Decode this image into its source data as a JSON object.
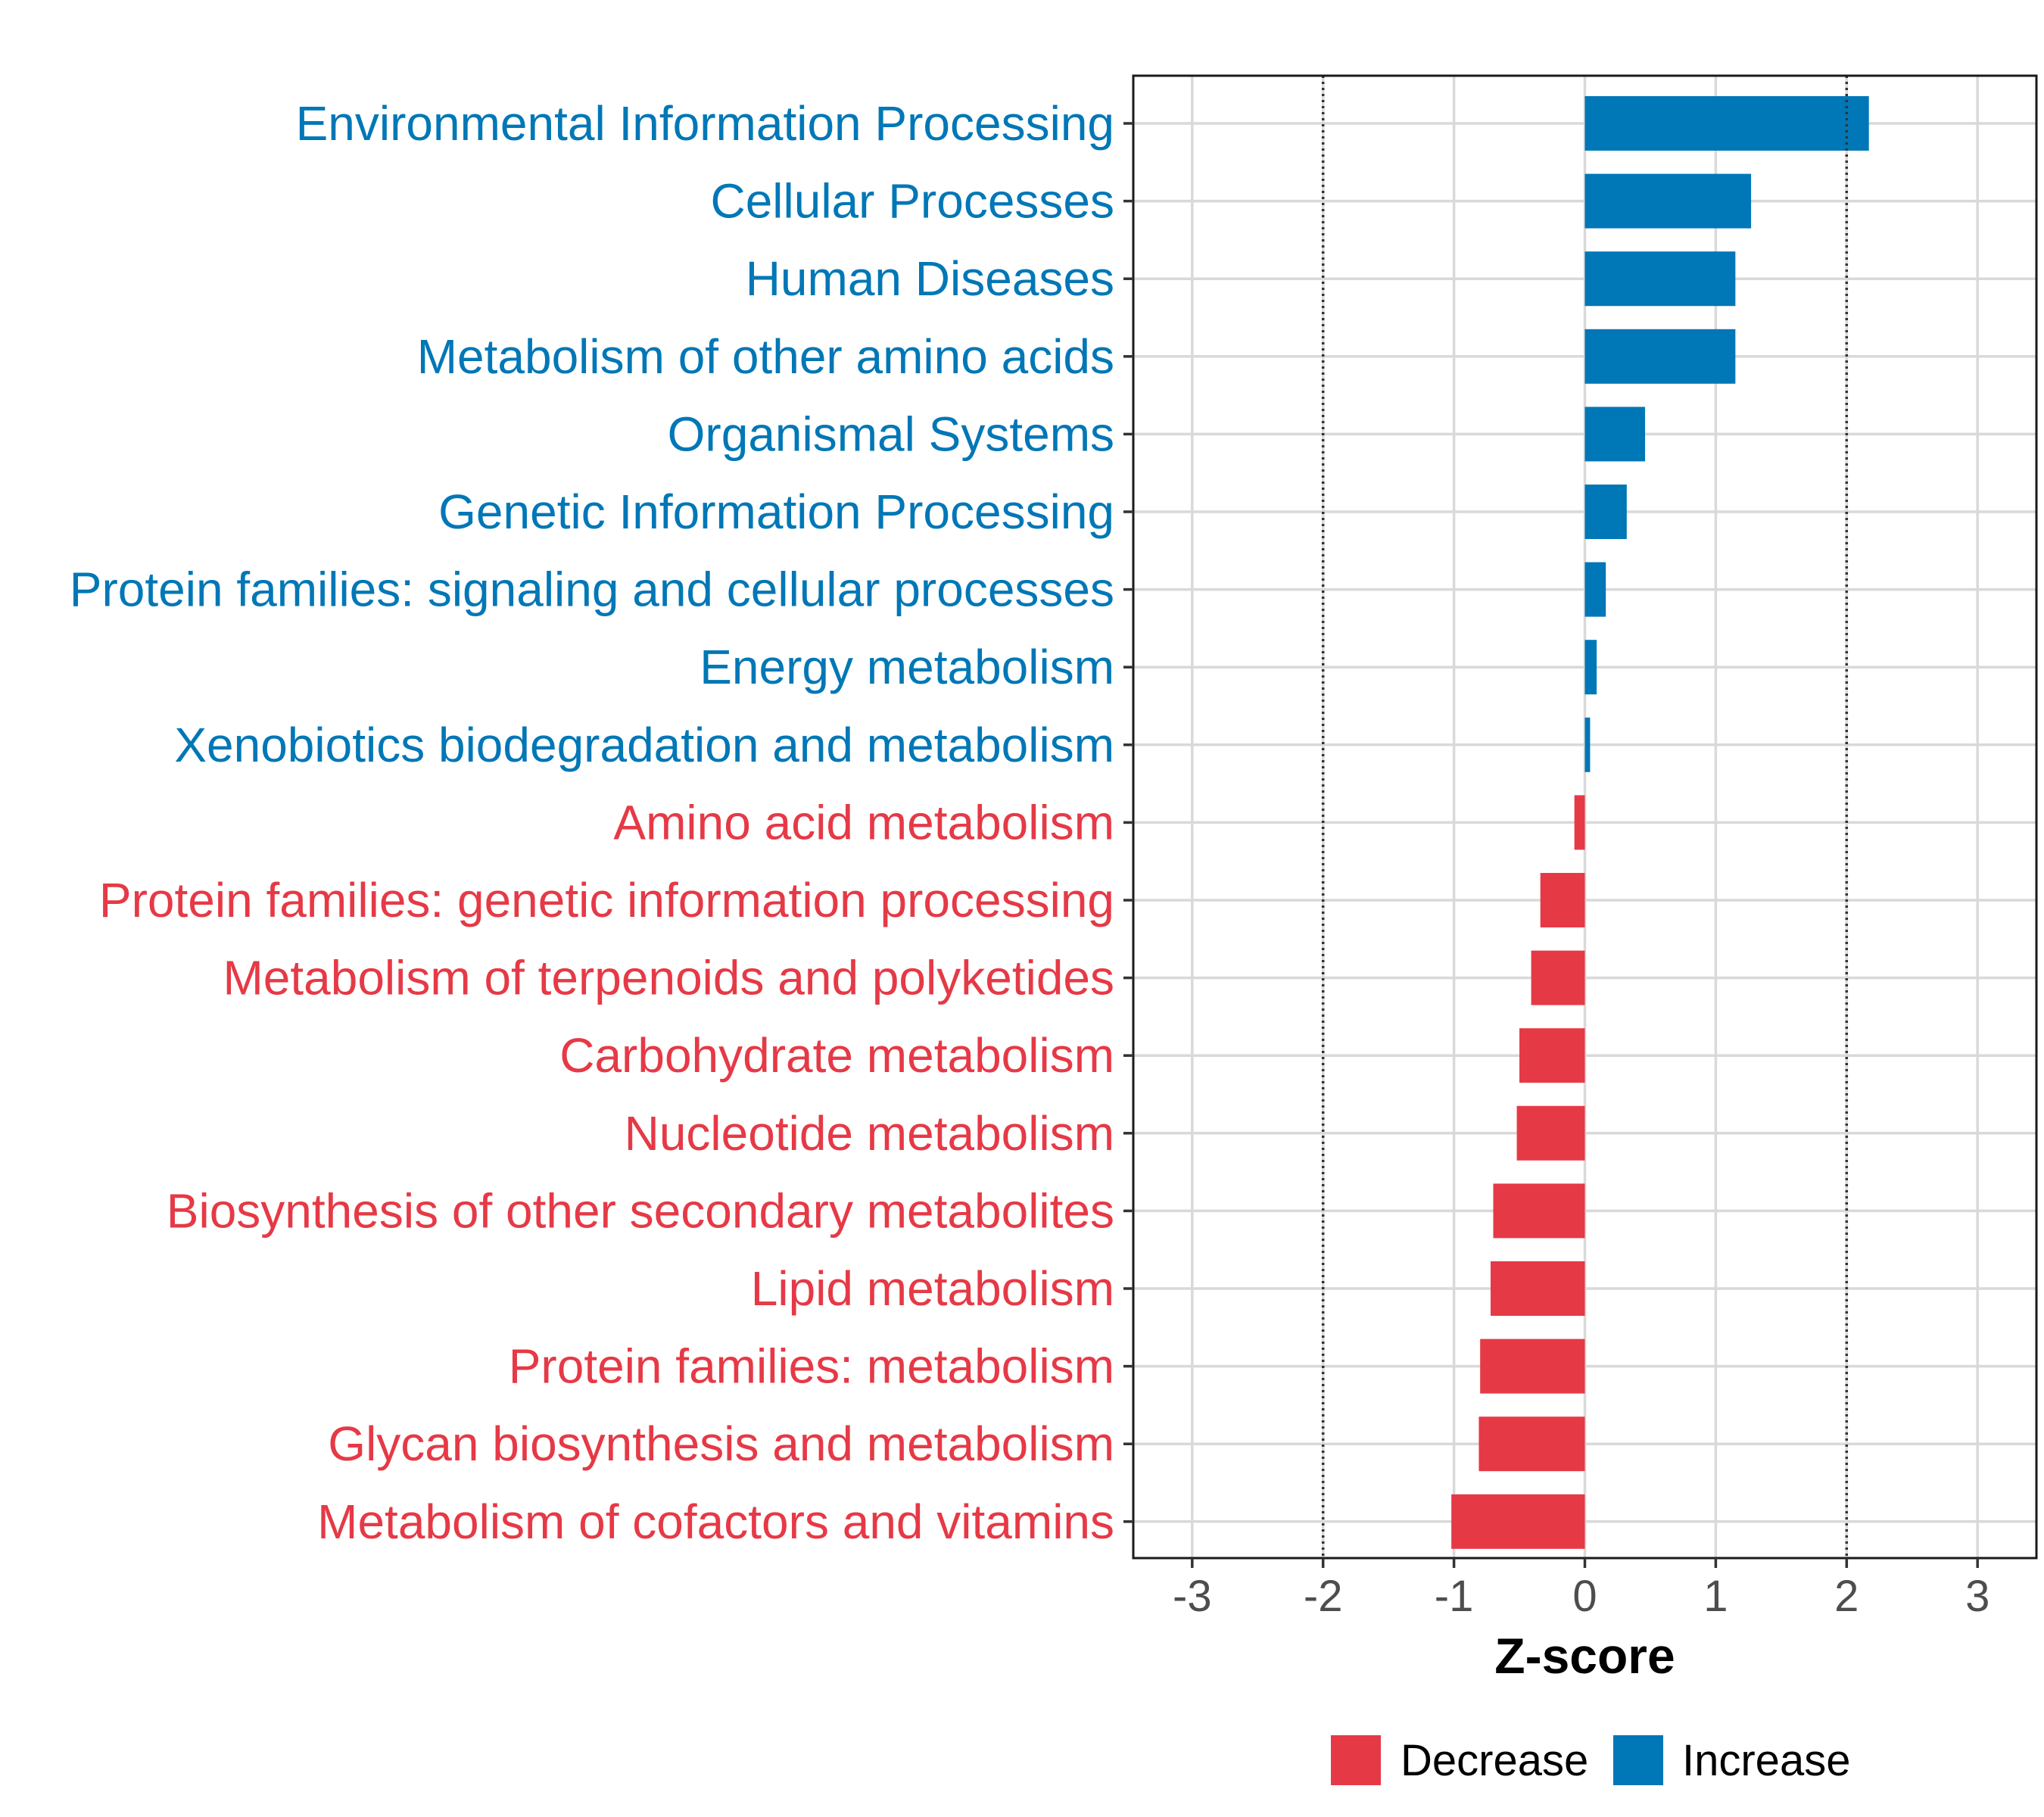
{
  "chart_data": {
    "type": "bar",
    "orientation": "horizontal",
    "xlabel": "Z-score",
    "xlim": [
      -3.45,
      3.45
    ],
    "xticks": [
      -3,
      -2,
      -1,
      0,
      1,
      2,
      3
    ],
    "xtick_labels": [
      "-3",
      "-2",
      "-1",
      "0",
      "1",
      "2",
      "3"
    ],
    "threshold_lines": [
      -2,
      2
    ],
    "grid": true,
    "legend_position": "bottom",
    "colors": {
      "Decrease": "#e63946",
      "Increase": "#0077b6"
    },
    "legend": [
      {
        "label": "Decrease",
        "color": "#e63946"
      },
      {
        "label": "Increase",
        "color": "#0077b6"
      }
    ],
    "categories": [
      "Environmental Information Processing",
      "Cellular Processes",
      "Human Diseases",
      "Metabolism of other amino acids",
      "Organismal Systems",
      "Genetic Information Processing",
      "Protein families: signaling and cellular processes",
      "Energy metabolism",
      "Xenobiotics biodegradation and metabolism",
      "Amino acid metabolism",
      "Protein families: genetic information processing",
      "Metabolism of terpenoids and polyketides",
      "Carbohydrate metabolism",
      "Nucleotide metabolism",
      "Biosynthesis of other secondary metabolites",
      "Lipid metabolism",
      "Protein families: metabolism",
      "Glycan biosynthesis and metabolism",
      "Metabolism of cofactors and vitamins"
    ],
    "values": [
      2.17,
      1.27,
      1.15,
      1.15,
      0.46,
      0.32,
      0.16,
      0.09,
      0.04,
      -0.08,
      -0.34,
      -0.41,
      -0.5,
      -0.52,
      -0.7,
      -0.72,
      -0.8,
      -0.81,
      -1.02
    ],
    "groups": [
      "Increase",
      "Increase",
      "Increase",
      "Increase",
      "Increase",
      "Increase",
      "Increase",
      "Increase",
      "Increase",
      "Decrease",
      "Decrease",
      "Decrease",
      "Decrease",
      "Decrease",
      "Decrease",
      "Decrease",
      "Decrease",
      "Decrease",
      "Decrease"
    ]
  }
}
